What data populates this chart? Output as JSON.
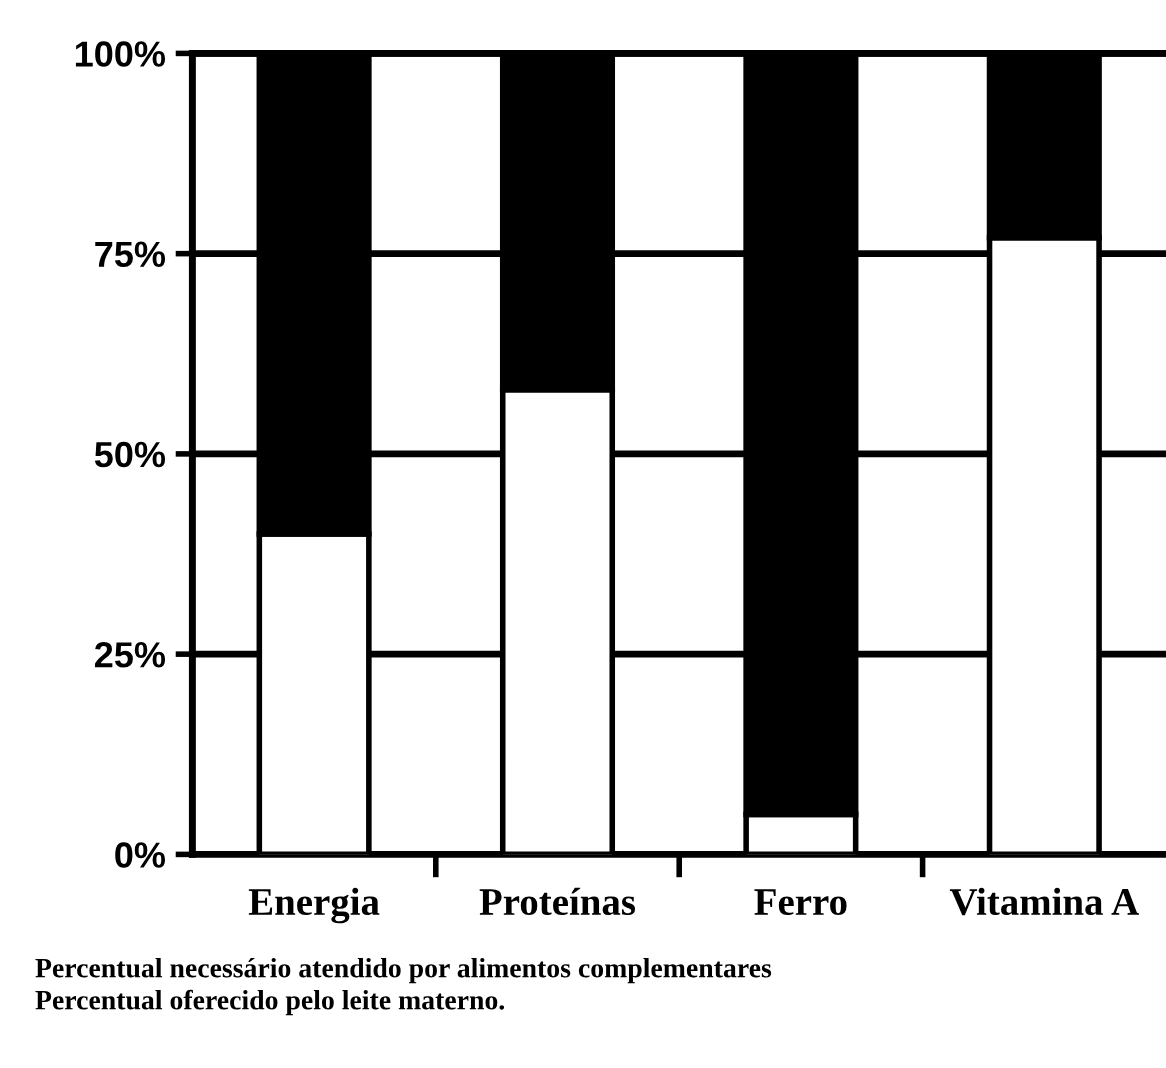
{
  "chart_data": {
    "type": "bar",
    "stacked": true,
    "categories": [
      "Energia",
      "Proteínas",
      "Ferro",
      "Vitamina A"
    ],
    "series": [
      {
        "color": "#ffffff",
        "values": [
          40,
          58,
          5,
          77
        ]
      },
      {
        "color": "#000000",
        "values": [
          60,
          42,
          95,
          23
        ]
      }
    ],
    "ylim": [
      0,
      100
    ],
    "yticks": [
      {
        "value": 0,
        "label": "0%"
      },
      {
        "value": 25,
        "label": "25%"
      },
      {
        "value": 50,
        "label": "50%"
      },
      {
        "value": 75,
        "label": "75%"
      },
      {
        "value": 100,
        "label": "100%"
      }
    ],
    "grid": "y",
    "legend": false,
    "annotations": [
      "Percentual necessário atendido por alimentos complementares",
      "Percentual oferecido pelo leite materno."
    ]
  }
}
